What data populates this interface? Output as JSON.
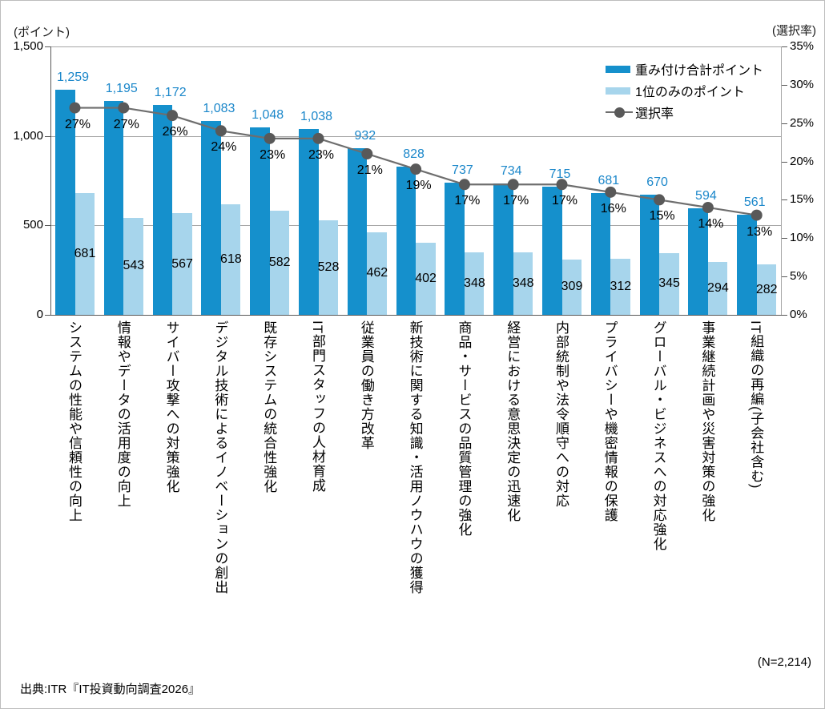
{
  "axes": {
    "left_unit": "(ポイント)",
    "right_unit": "(選択率)",
    "left_ticks": [
      "0",
      "500",
      "1,000",
      "1,500"
    ],
    "right_ticks": [
      "0%",
      "5%",
      "10%",
      "15%",
      "20%",
      "25%",
      "30%",
      "35%"
    ]
  },
  "legend": {
    "items": [
      {
        "label": "重み付け合計ポイント",
        "swatch": "bar-dark"
      },
      {
        "label": "1位のみのポイント",
        "swatch": "bar-light"
      },
      {
        "label": "選択率",
        "swatch": "line-marker"
      }
    ]
  },
  "footer": {
    "source": "出典:ITR『IT投資動向調査2026』",
    "sample_size": "(N=2,214)"
  },
  "colors": {
    "bar_dark": "#1590cc",
    "bar_light": "#a7d5ec",
    "line": "#6e6e6e",
    "marker": "#595959",
    "value_label_blue": "#1b87ca",
    "grid": "#a6a6a6",
    "axis": "#595959"
  },
  "chart_data": {
    "type": "bar",
    "subtype": "grouped-bar-with-line-overlay-dual-axis",
    "title": "",
    "categories": [
      "システムの性能や信頼性の向上",
      "情報やデータの活用度の向上",
      "サイバー攻撃への対策強化",
      "デジタル技術によるイノベーションの創出",
      "既存システムの統合性強化",
      "IT部門スタッフの人材育成",
      "従業員の働き方改革",
      "新技術に関する知識・活用ノウハウの獲得",
      "商品・サービスの品質管理の強化",
      "経営における意思決定の迅速化",
      "内部統制や法令順守への対応",
      "プライバシーや機密情報の保護",
      "グローバル・ビジネスへの対応強化",
      "事業継続計画や災害対策の強化",
      "IT組織の再編(子会社含む)"
    ],
    "series": [
      {
        "name": "重み付け合計ポイント",
        "type": "bar",
        "axis": "left",
        "values": [
          1259,
          1195,
          1172,
          1083,
          1048,
          1038,
          932,
          828,
          737,
          734,
          715,
          681,
          670,
          594,
          561
        ]
      },
      {
        "name": "1位のみのポイント",
        "type": "bar",
        "axis": "left",
        "values": [
          681,
          543,
          567,
          618,
          582,
          528,
          462,
          402,
          348,
          348,
          309,
          312,
          345,
          294,
          282
        ]
      },
      {
        "name": "選択率",
        "type": "line",
        "axis": "right",
        "unit": "%",
        "values": [
          27,
          27,
          26,
          24,
          23,
          23,
          21,
          19,
          17,
          17,
          17,
          16,
          15,
          14,
          13
        ]
      }
    ],
    "left_axis": {
      "unit": "(ポイント)",
      "min": 0,
      "max": 1500,
      "tick_step": 500
    },
    "right_axis": {
      "unit": "(選択率)",
      "min": 0,
      "max": 35,
      "tick_step": 5
    },
    "legend_position": "top-right-inside-plot",
    "grid": "horizontal gridlines at 500 and 1,000 points"
  }
}
